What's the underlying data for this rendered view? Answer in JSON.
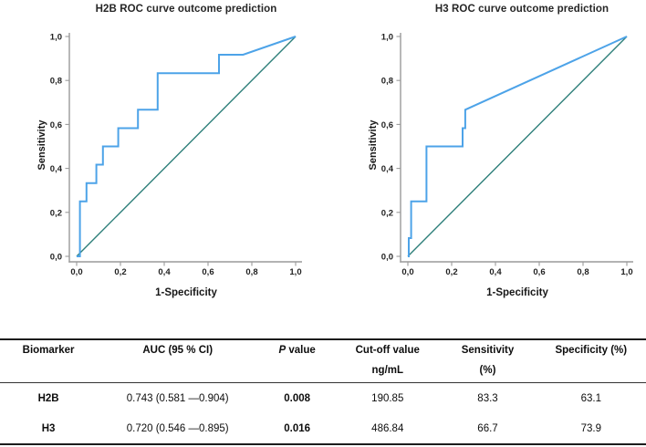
{
  "figure": {
    "background": "#ffffff",
    "colors": {
      "roc_line": "#4da3e8",
      "reference_line": "#2e7f7a",
      "axis": "#9a9a9a",
      "text": "#1c1c1c"
    }
  },
  "chart_data": [
    {
      "type": "line",
      "title": "H2B ROC curve outcome prediction",
      "xlabel": "1-Specificity",
      "ylabel": "Sensitivity",
      "xlim": [
        0,
        1
      ],
      "ylim": [
        0,
        1
      ],
      "grid": false,
      "legend": "none",
      "x_tick_values": [
        0,
        0.2,
        0.4,
        0.6,
        0.8,
        1.0
      ],
      "x_tick_labels": [
        "0,0",
        "0,2",
        "0,4",
        "0,6",
        "0,8",
        "1,0"
      ],
      "y_tick_values": [
        0,
        0.2,
        0.4,
        0.6,
        0.8,
        1.0
      ],
      "y_tick_labels": [
        "0,0",
        "0,2",
        "0,4",
        "0,6",
        "0,8",
        "1,0"
      ],
      "series": [
        {
          "name": "ROC curve",
          "color": "#4da3e8",
          "points": [
            [
              0,
              0
            ],
            [
              0.015,
              0
            ],
            [
              0.015,
              0.25
            ],
            [
              0.045,
              0.25
            ],
            [
              0.045,
              0.333
            ],
            [
              0.09,
              0.333
            ],
            [
              0.09,
              0.417
            ],
            [
              0.12,
              0.417
            ],
            [
              0.12,
              0.5
            ],
            [
              0.19,
              0.5
            ],
            [
              0.19,
              0.583
            ],
            [
              0.28,
              0.583
            ],
            [
              0.28,
              0.667
            ],
            [
              0.37,
              0.667
            ],
            [
              0.37,
              0.833
            ],
            [
              0.65,
              0.833
            ],
            [
              0.65,
              0.917
            ],
            [
              0.76,
              0.917
            ],
            [
              1,
              1
            ]
          ]
        },
        {
          "name": "Reference diagonal",
          "color": "#2e7f7a",
          "points": [
            [
              0,
              0
            ],
            [
              1,
              1
            ]
          ]
        }
      ]
    },
    {
      "type": "line",
      "title": "H3 ROC curve outcome prediction",
      "xlabel": "1-Specificity",
      "ylabel": "Sensitivity",
      "xlim": [
        0,
        1
      ],
      "ylim": [
        0,
        1
      ],
      "grid": false,
      "legend": "none",
      "x_tick_values": [
        0,
        0.2,
        0.4,
        0.6,
        0.8,
        1.0
      ],
      "x_tick_labels": [
        "0,0",
        "0,2",
        "0,4",
        "0,6",
        "0,8",
        "1,0"
      ],
      "y_tick_values": [
        0,
        0.2,
        0.4,
        0.6,
        0.8,
        1.0
      ],
      "y_tick_labels": [
        "0,0",
        "0,2",
        "0,4",
        "0,6",
        "0,8",
        "1,0"
      ],
      "series": [
        {
          "name": "ROC curve",
          "color": "#4da3e8",
          "points": [
            [
              0,
              0
            ],
            [
              0.004,
              0
            ],
            [
              0.004,
              0.083
            ],
            [
              0.015,
              0.083
            ],
            [
              0.015,
              0.25
            ],
            [
              0.085,
              0.25
            ],
            [
              0.085,
              0.5
            ],
            [
              0.25,
              0.5
            ],
            [
              0.25,
              0.583
            ],
            [
              0.262,
              0.583
            ],
            [
              0.262,
              0.667
            ],
            [
              1,
              1
            ]
          ]
        },
        {
          "name": "Reference diagonal",
          "color": "#2e7f7a",
          "points": [
            [
              0,
              0
            ],
            [
              1,
              1
            ]
          ]
        }
      ]
    },
    {
      "type": "table",
      "columns": [
        "Biomarker",
        "AUC (95 % CI)",
        "P value",
        "Cut-off value ng/mL",
        "Sensitivity (%)",
        "Specificity (%)"
      ],
      "rows": [
        [
          "H2B",
          "0.743 (0.581 —0.904)",
          "0.008",
          "190.85",
          "83.3",
          "63.1"
        ],
        [
          "H3",
          "0.720 (0.546 —0.895)",
          "0.016",
          "486.84",
          "66.7",
          "73.9"
        ]
      ]
    }
  ],
  "table": {
    "headers": [
      {
        "line1": "Biomarker",
        "line2": ""
      },
      {
        "line1": "AUC (95 % CI)",
        "line2": ""
      },
      {
        "italic": "P",
        "rest": " value",
        "line2": ""
      },
      {
        "line1": "Cut-off value",
        "line2": "ng/mL"
      },
      {
        "line1": "Sensitivity",
        "line2": "(%)"
      },
      {
        "line1": "Specificity (%)",
        "line2": ""
      }
    ],
    "rows": [
      {
        "biomarker": "H2B",
        "auc": "0.743 (0.581 —0.904)",
        "p": "0.008",
        "cutoff": "190.85",
        "sens": "83.3",
        "spec": "63.1"
      },
      {
        "biomarker": "H3",
        "auc": "0.720 (0.546 —0.895)",
        "p": "0.016",
        "cutoff": "486.84",
        "sens": "66.7",
        "spec": "73.9"
      }
    ]
  }
}
